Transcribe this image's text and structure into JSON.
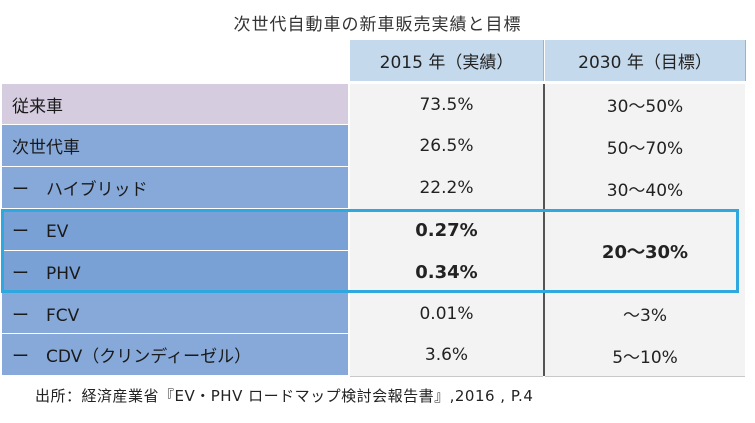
{
  "title": "次世代自動車の新車販売実績と目標",
  "headers": {
    "col1": "2015 年（実績）",
    "col2": "2030 年（目標）"
  },
  "rows": [
    {
      "label": "従来車",
      "v2015": "73.5%",
      "v2030": "30〜50%"
    },
    {
      "label": "次世代車",
      "v2015": "26.5%",
      "v2030": "50〜70%"
    },
    {
      "label": "ー　ハイブリッド",
      "v2015": "22.2%",
      "v2030": "30〜40%"
    },
    {
      "label": "ー　EV",
      "v2015": "0.27%"
    },
    {
      "label": "ー　PHV",
      "v2015": "0.34%"
    },
    {
      "label": "ー　FCV",
      "v2015": "0.01%",
      "v2030": "〜3%"
    },
    {
      "label": "ー　CDV（クリンディーゼル）",
      "v2015": "3.6%",
      "v2030": "5〜10%"
    }
  ],
  "merged_2030_ev_phv": "20〜30%",
  "source": "出所：経済産業省『EV・PHV ロードマップ検討会報告書』,2016 , P.4",
  "colors": {
    "header": "#c5d9ec",
    "row_conventional": "#d6ccdf",
    "row_next": "#6f99d2",
    "highlight": "#2fa8e0"
  }
}
